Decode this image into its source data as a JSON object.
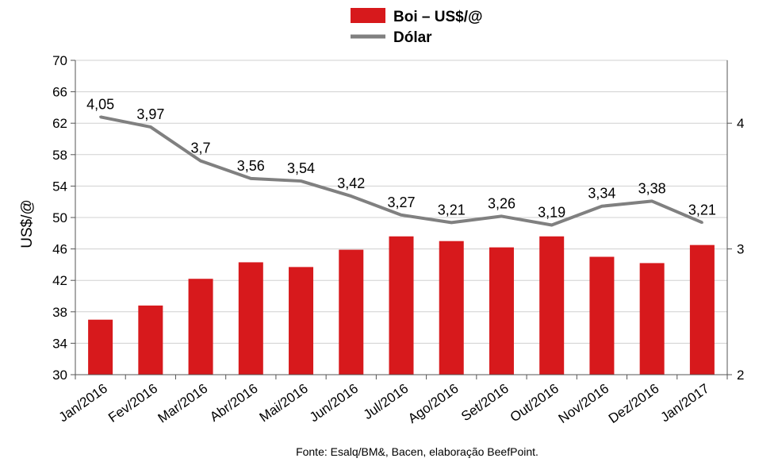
{
  "chart_data": {
    "type": "bar",
    "categories": [
      "Jan/2016",
      "Fev/2016",
      "Mar/2016",
      "Abr/2016",
      "Mai/2016",
      "Jun/2016",
      "Jul/2016",
      "Ago/2016",
      "Set/2016",
      "Out/2016",
      "Nov/2016",
      "Dez/2016",
      "Jan/2017"
    ],
    "series": [
      {
        "name": "Boi – US$/@",
        "type": "bar",
        "axis": "left",
        "color": "#d7191c",
        "values": [
          37.0,
          38.8,
          42.2,
          44.3,
          43.7,
          45.9,
          47.6,
          47.0,
          46.2,
          47.6,
          45.0,
          44.2,
          46.5
        ]
      },
      {
        "name": "Dólar",
        "type": "line",
        "axis": "right",
        "color": "#808080",
        "values": [
          4.05,
          3.97,
          3.7,
          3.56,
          3.54,
          3.42,
          3.27,
          3.21,
          3.26,
          3.19,
          3.34,
          3.38,
          3.21
        ],
        "labels": [
          "4,05",
          "3,97",
          "3,7",
          "3,56",
          "3,54",
          "3,42",
          "3,27",
          "3,21",
          "3,26",
          "3,19",
          "3,34",
          "3,38",
          "3,21"
        ]
      }
    ],
    "ylabel": "US$/@",
    "ylim": [
      30,
      70
    ],
    "yticks": [
      "30",
      "34",
      "38",
      "42",
      "46",
      "50",
      "54",
      "58",
      "62",
      "66",
      "70"
    ],
    "y2lim": [
      2,
      4.5
    ],
    "y2ticks": [
      "2",
      "3",
      "4"
    ],
    "grid": true,
    "legend_position": "top-center",
    "source": "Fonte:  Esalq/BM&,  Bacen,  elaboração  BeefPoint."
  }
}
